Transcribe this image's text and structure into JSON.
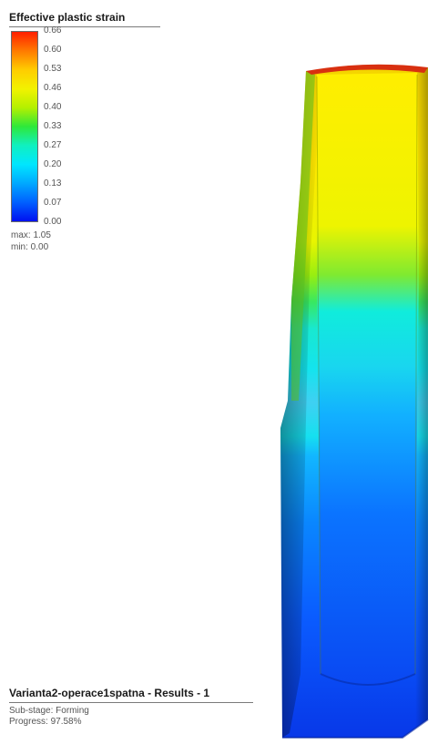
{
  "legend": {
    "title": "Effective plastic strain",
    "ticks": [
      "0.66",
      "0.60",
      "0.53",
      "0.46",
      "0.40",
      "0.33",
      "0.27",
      "0.20",
      "0.13",
      "0.07",
      "0.00"
    ],
    "max_label": "max: 1.05",
    "min_label": "min:  0.00",
    "colors": [
      "#ff1f00",
      "#ff7a00",
      "#ffcc00",
      "#f2f200",
      "#b4f000",
      "#2ee83a",
      "#10f0c0",
      "#00e6ff",
      "#00a8ff",
      "#0060ff",
      "#0010f0"
    ]
  },
  "footer": {
    "title": "Varianta2-operace1spatna - Results - 1",
    "substage": "Sub-stage: Forming",
    "progress": "Progress: 97.58%"
  }
}
